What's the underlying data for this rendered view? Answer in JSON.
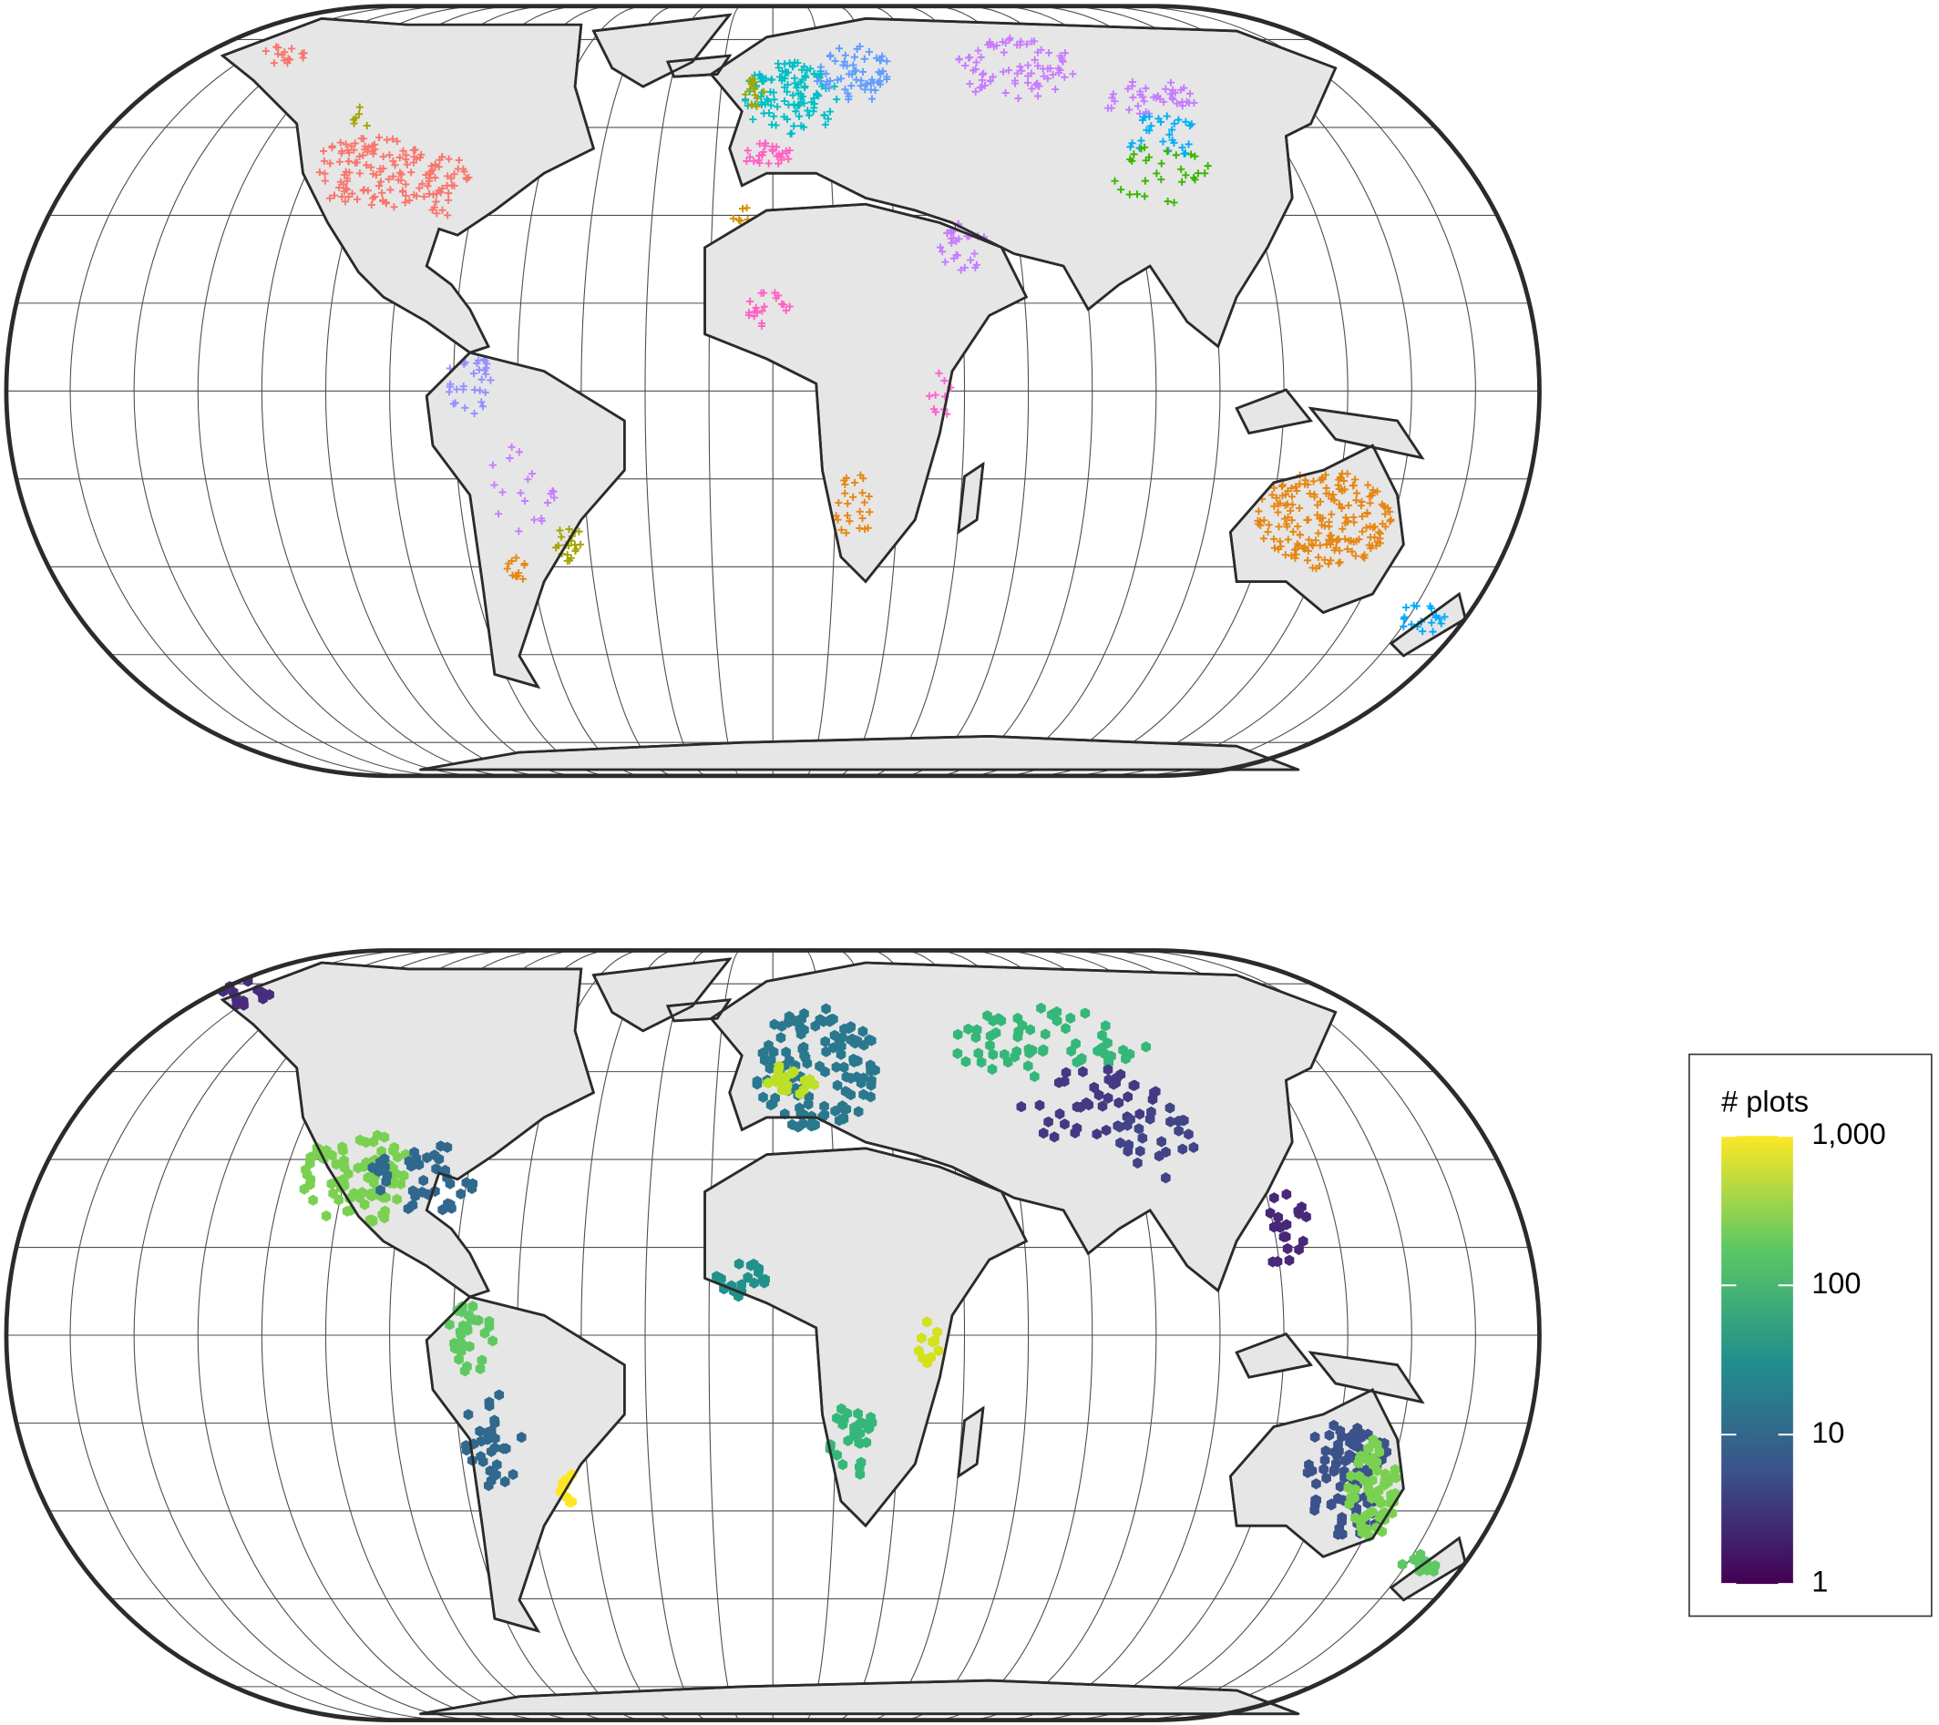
{
  "legend": {
    "title": "# plots",
    "scale": "log",
    "lim": [
      1,
      1000
    ],
    "ticks": [
      1,
      10,
      100,
      {
        "value": 1000,
        "label": "1,000"
      }
    ],
    "colors": [
      "#440154",
      "#3b528b",
      "#21908c",
      "#5dc863",
      "#fde725"
    ]
  }
}
